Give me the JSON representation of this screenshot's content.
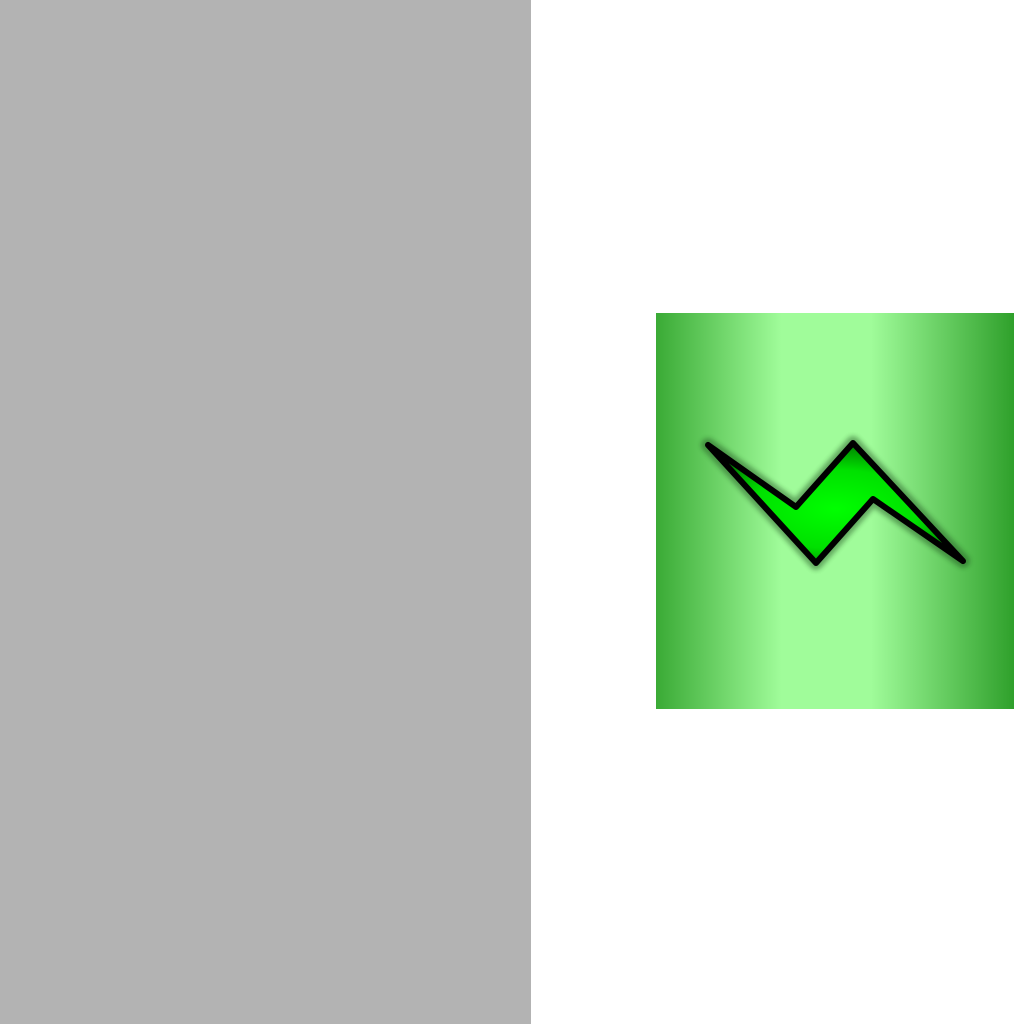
{
  "colors": {
    "panel_gray": "#b3b3b3",
    "background": "#ffffff",
    "tile_edge_green": "#3aaa35",
    "tile_highlight_green": "#a0fc9a",
    "bolt_bright_green": "#00ff00",
    "bolt_dark_green": "#008000",
    "bolt_outline": "#000000"
  },
  "icons": {
    "tile": "cylinder-tile",
    "symbol": "zigzag-lightning-bolt-icon"
  }
}
